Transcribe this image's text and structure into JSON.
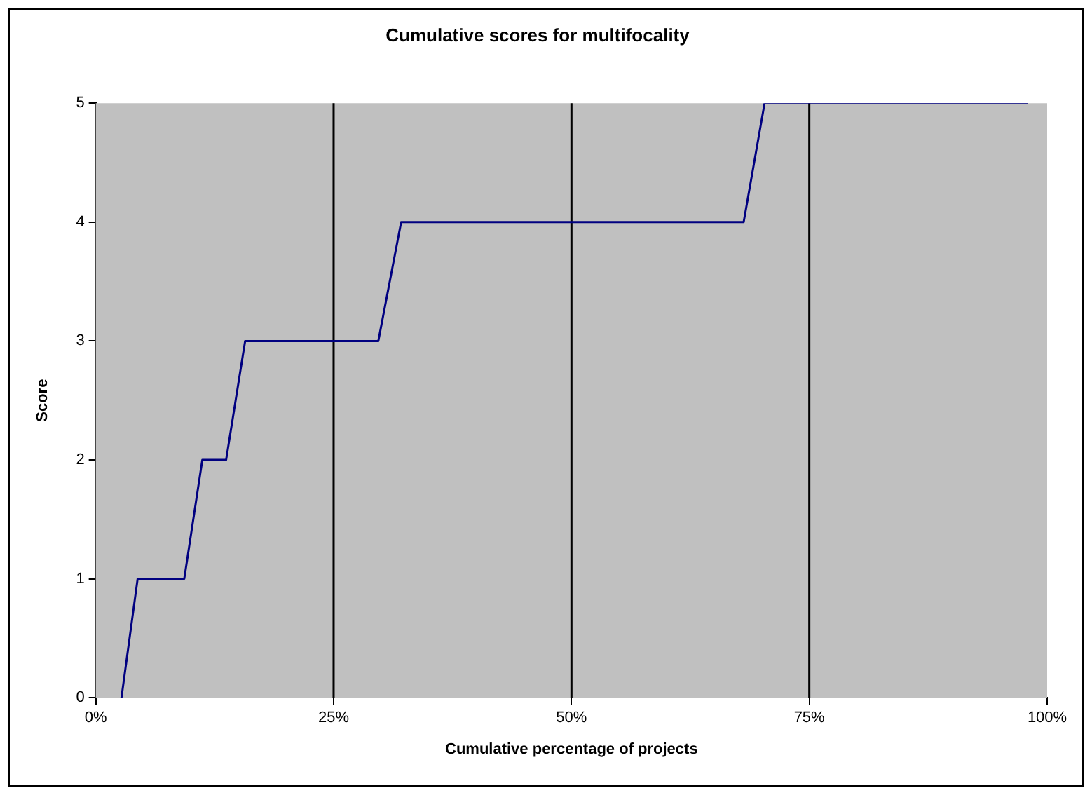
{
  "chart_data": {
    "type": "line",
    "title": "Cumulative scores for multifocality",
    "xlabel": "Cumulative percentage of projects",
    "ylabel": "Score",
    "series": [
      {
        "color": "#000080",
        "x": [
          2.7,
          4.4,
          9.3,
          11.2,
          13.7,
          15.7,
          29.7,
          32.1,
          68.1,
          70.3,
          98
        ],
        "values": [
          0,
          1,
          1,
          2,
          2,
          3,
          3,
          4,
          4,
          5,
          5
        ]
      }
    ],
    "xlim": [
      0,
      100
    ],
    "xticks": [
      {
        "value": 0,
        "label": "0%"
      },
      {
        "value": 25,
        "label": "25%"
      },
      {
        "value": 50,
        "label": "50%"
      },
      {
        "value": 75,
        "label": "75%"
      },
      {
        "value": 100,
        "label": "100%"
      }
    ],
    "ylim": [
      0,
      5
    ],
    "yticks": [
      0,
      1,
      2,
      3,
      4,
      5
    ],
    "ref_lines": [
      {
        "axis": "x",
        "value": 25,
        "color": "#000000"
      },
      {
        "axis": "x",
        "value": 50,
        "color": "#000000"
      },
      {
        "axis": "x",
        "value": 75,
        "color": "#000000"
      }
    ],
    "grid": false,
    "legend": false,
    "marker": "none",
    "line_style": "solid"
  }
}
